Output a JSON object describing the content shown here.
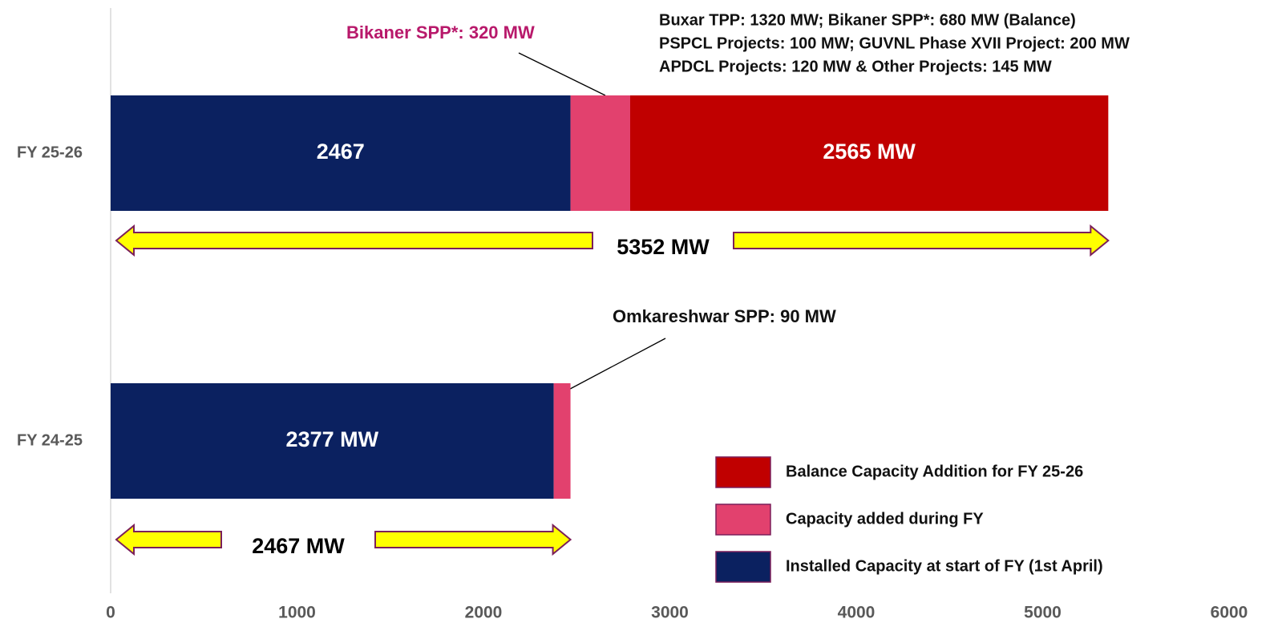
{
  "chart_data": {
    "type": "stacked-barh",
    "categories": [
      "FY 25-26",
      "FY 24-25"
    ],
    "series": [
      {
        "name": "Installed Capacity at start of FY (1st April)",
        "color": "#0b2160",
        "values": [
          2467,
          2377
        ],
        "value_labels": [
          "2467",
          "2377 MW"
        ]
      },
      {
        "name": "Capacity added during FY",
        "color": "#e2416e",
        "values": [
          320,
          90
        ]
      },
      {
        "name": "Balance Capacity Addition for FY 25-26",
        "color": "#c00000",
        "values": [
          2565,
          null
        ],
        "value_labels": [
          "2565 MW",
          null
        ]
      }
    ],
    "totals": [
      5352,
      2467
    ],
    "total_labels": [
      "5352 MW",
      "2467 MW"
    ],
    "xlim": [
      0,
      6000
    ],
    "xticks": [
      0,
      1000,
      2000,
      3000,
      4000,
      5000,
      6000
    ],
    "annotations": [
      "Bikaner SPP*: 320 MW",
      "Buxar TPP: 1320 MW; Bikaner SPP*: 680 MW (Balance)",
      "PSPCL Projects: 100 MW; GUVNL Phase XVII Project: 200 MW",
      "APDCL Projects: 120 MW & Other Projects: 145 MW",
      "Omkareshwar SPP: 90 MW"
    ],
    "legend": "lower right"
  }
}
